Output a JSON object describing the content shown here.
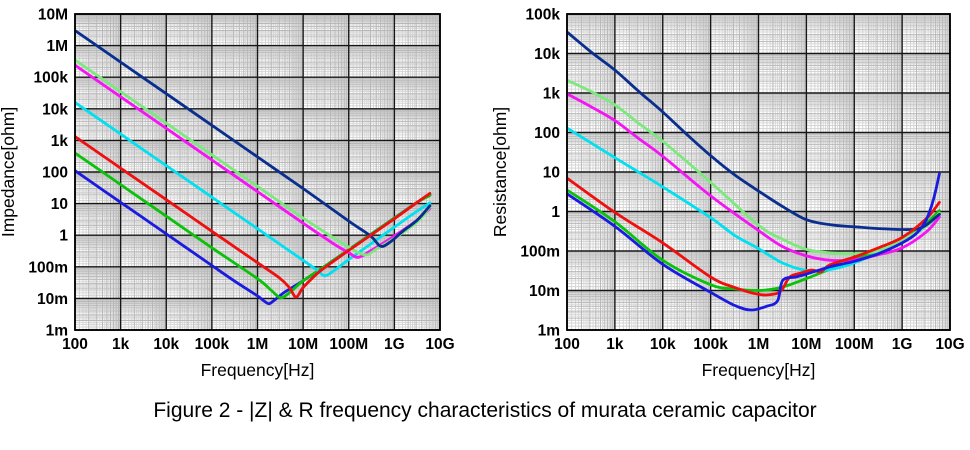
{
  "caption": "Figure 2 - |Z| & R frequency characteristics of murata ceramic capacitor",
  "colors": {
    "navy": "#0a2e8e",
    "light_green": "#7de87d",
    "magenta": "#f414f4",
    "cyan": "#00e0f0",
    "red": "#f00f0f",
    "green": "#0bc20b",
    "blue": "#1a1ae0",
    "grid_major": "#161616",
    "grid_minor": "#b8b8b8",
    "grid_fine": "#d6d6d6",
    "frame": "#000000"
  },
  "chart_data": [
    {
      "type": "line",
      "title": "",
      "xlabel": "Frequency[Hz]",
      "ylabel": "Impedance[ohm]",
      "xscale": "log",
      "yscale": "log",
      "xlim": [
        100,
        10000000000
      ],
      "ylim": [
        0.001,
        10000000
      ],
      "grid": true,
      "legend": "none",
      "x_tick_labels": [
        "100",
        "1k",
        "10k",
        "100k",
        "1M",
        "10M",
        "100M",
        "1G",
        "10G"
      ],
      "y_tick_labels": [
        "10M",
        "1M",
        "100k",
        "10k",
        "1k",
        "100",
        "10",
        "1",
        "100m",
        "10m",
        "1m"
      ],
      "series": [
        {
          "name": "blue",
          "color_key": "blue",
          "points": [
            [
              100,
              110
            ],
            [
              1000,
              11
            ],
            [
              10000,
              1.1
            ],
            [
              100000,
              0.11
            ],
            [
              316000,
              0.035
            ],
            [
              1000000,
              0.012
            ],
            [
              1400000,
              0.0082
            ],
            [
              1800000,
              0.0068
            ],
            [
              2400000,
              0.009
            ],
            [
              4000000,
              0.016
            ],
            [
              10000000,
              0.036
            ],
            [
              31600000,
              0.11
            ],
            [
              100000000,
              0.35
            ],
            [
              1000000000,
              3.5
            ],
            [
              3160000000,
              11
            ],
            [
              6000000000,
              19
            ]
          ]
        },
        {
          "name": "green",
          "color_key": "green",
          "points": [
            [
              100,
              400
            ],
            [
              1000,
              40
            ],
            [
              10000,
              4
            ],
            [
              100000,
              0.4
            ],
            [
              1000000,
              0.042
            ],
            [
              2000000,
              0.018
            ],
            [
              3200000,
              0.0105
            ],
            [
              5000000,
              0.015
            ],
            [
              10000000,
              0.036
            ],
            [
              31600000,
              0.11
            ],
            [
              100000000,
              0.35
            ],
            [
              1000000000,
              3.5
            ],
            [
              3160000000,
              11
            ],
            [
              6000000000,
              18
            ]
          ]
        },
        {
          "name": "cyan",
          "color_key": "cyan",
          "points": [
            [
              100,
              15900
            ],
            [
              1000,
              1590
            ],
            [
              10000,
              159
            ],
            [
              100000,
              15.9
            ],
            [
              1000000,
              1.6
            ],
            [
              10000000,
              0.16
            ],
            [
              20000000,
              0.08
            ],
            [
              30000000,
              0.052
            ],
            [
              50000000,
              0.08
            ],
            [
              100000000,
              0.17
            ],
            [
              316000000,
              0.55
            ],
            [
              1000000000,
              1.8
            ],
            [
              3160000000,
              5.8
            ],
            [
              6000000000,
              10.5
            ]
          ]
        },
        {
          "name": "magenta",
          "color_key": "magenta",
          "points": [
            [
              100,
              240000
            ],
            [
              1000,
              24000
            ],
            [
              10000,
              2400
            ],
            [
              100000,
              240
            ],
            [
              1000000,
              24
            ],
            [
              10000000,
              2.4
            ],
            [
              50000000,
              0.5
            ],
            [
              100000000,
              0.28
            ],
            [
              160000000,
              0.2
            ],
            [
              300000000,
              0.32
            ],
            [
              1000000000,
              0.95
            ],
            [
              3160000000,
              3.0
            ],
            [
              6000000000,
              7
            ]
          ]
        },
        {
          "name": "light-green",
          "color_key": "light_green",
          "points": [
            [
              100,
              350000
            ],
            [
              1000,
              35000
            ],
            [
              10000,
              3500
            ],
            [
              100000,
              350
            ],
            [
              1000000,
              35
            ],
            [
              10000000,
              3.5
            ],
            [
              100000000,
              0.42
            ],
            [
              230000000,
              0.24
            ],
            [
              400000000,
              0.36
            ],
            [
              1000000000,
              0.8
            ],
            [
              3160000000,
              2.6
            ],
            [
              6000000000,
              7.8
            ]
          ]
        },
        {
          "name": "navy",
          "color_key": "navy",
          "points": [
            [
              100,
              3000000
            ],
            [
              1000,
              300000
            ],
            [
              10000,
              30000
            ],
            [
              100000,
              3000
            ],
            [
              1000000,
              300
            ],
            [
              10000000,
              30
            ],
            [
              100000000,
              2.8
            ],
            [
              300000000,
              0.95
            ],
            [
              500000000,
              0.45
            ],
            [
              800000000,
              0.6
            ],
            [
              1500000000,
              1.3
            ],
            [
              3160000000,
              3.0
            ],
            [
              6000000000,
              8.5
            ]
          ]
        },
        {
          "name": "red",
          "color_key": "red",
          "points": [
            [
              100,
              1330
            ],
            [
              1000,
              133
            ],
            [
              10000,
              13.3
            ],
            [
              100000,
              1.33
            ],
            [
              1000000,
              0.135
            ],
            [
              3000000,
              0.045
            ],
            [
              5000000,
              0.022
            ],
            [
              7000000,
              0.011
            ],
            [
              10000000,
              0.022
            ],
            [
              20000000,
              0.06
            ],
            [
              31600000,
              0.1
            ],
            [
              100000000,
              0.33
            ],
            [
              1000000000,
              3.3
            ],
            [
              3160000000,
              11
            ],
            [
              6000000000,
              21
            ]
          ]
        }
      ]
    },
    {
      "type": "line",
      "title": "",
      "xlabel": "Frequency[Hz]",
      "ylabel": "Resistance[ohm]",
      "xscale": "log",
      "yscale": "log",
      "xlim": [
        100,
        10000000000
      ],
      "ylim": [
        0.001,
        100000
      ],
      "grid": true,
      "legend": "none",
      "x_tick_labels": [
        "100",
        "1k",
        "10k",
        "100k",
        "1M",
        "10M",
        "100M",
        "1G",
        "10G"
      ],
      "y_tick_labels": [
        "100k",
        "10k",
        "1k",
        "100",
        "10",
        "1",
        "100m",
        "10m",
        "1m"
      ],
      "series": [
        {
          "name": "green",
          "color_key": "green",
          "points": [
            [
              100,
              3.5
            ],
            [
              1000,
              0.55
            ],
            [
              10000,
              0.058
            ],
            [
              100000,
              0.014
            ],
            [
              316000,
              0.011
            ],
            [
              1000000,
              0.01
            ],
            [
              3000000,
              0.012
            ],
            [
              10000000,
              0.02
            ],
            [
              31600000,
              0.035
            ],
            [
              100000000,
              0.06
            ],
            [
              316000000,
              0.1
            ],
            [
              1000000000,
              0.18
            ],
            [
              3160000000,
              0.5
            ],
            [
              6000000000,
              1.05
            ]
          ]
        },
        {
          "name": "cyan",
          "color_key": "cyan",
          "points": [
            [
              100,
              130
            ],
            [
              1000,
              23
            ],
            [
              10000,
              4.2
            ],
            [
              100000,
              0.7
            ],
            [
              316000,
              0.25
            ],
            [
              1000000,
              0.115
            ],
            [
              3160000,
              0.05
            ],
            [
              10000000,
              0.032
            ],
            [
              31600000,
              0.034
            ],
            [
              100000000,
              0.05
            ],
            [
              316000000,
              0.09
            ],
            [
              1000000000,
              0.17
            ],
            [
              3160000000,
              0.42
            ],
            [
              6000000000,
              0.85
            ]
          ]
        },
        {
          "name": "magenta",
          "color_key": "magenta",
          "points": [
            [
              100,
              950
            ],
            [
              316,
              450
            ],
            [
              1000,
              200
            ],
            [
              3160,
              70
            ],
            [
              10000,
              25
            ],
            [
              100000,
              2.5
            ],
            [
              1000000,
              0.33
            ],
            [
              3160000,
              0.13
            ],
            [
              10000000,
              0.075
            ],
            [
              31600000,
              0.058
            ],
            [
              100000000,
              0.06
            ],
            [
              316000000,
              0.08
            ],
            [
              1000000000,
              0.12
            ],
            [
              3160000000,
              0.3
            ],
            [
              6000000000,
              0.72
            ]
          ]
        },
        {
          "name": "light-green",
          "color_key": "light_green",
          "points": [
            [
              100,
              2100
            ],
            [
              316,
              1100
            ],
            [
              1000,
              500
            ],
            [
              3160,
              170
            ],
            [
              10000,
              60
            ],
            [
              100000,
              5.5
            ],
            [
              1000000,
              0.45
            ],
            [
              3160000,
              0.2
            ],
            [
              10000000,
              0.11
            ],
            [
              31600000,
              0.09
            ],
            [
              100000000,
              0.085
            ],
            [
              316000000,
              0.1
            ],
            [
              1000000000,
              0.19
            ],
            [
              3160000000,
              0.42
            ],
            [
              6000000000,
              0.9
            ]
          ]
        },
        {
          "name": "navy",
          "color_key": "navy",
          "points": [
            [
              100,
              35000
            ],
            [
              316,
              11000
            ],
            [
              1000,
              3800
            ],
            [
              3160,
              1100
            ],
            [
              10000,
              330
            ],
            [
              31600,
              90
            ],
            [
              100000,
              26
            ],
            [
              316000,
              8.5
            ],
            [
              1000000,
              3.3
            ],
            [
              3160000,
              1.35
            ],
            [
              10000000,
              0.62
            ],
            [
              31600000,
              0.46
            ],
            [
              100000000,
              0.41
            ],
            [
              316000000,
              0.37
            ],
            [
              1000000000,
              0.35
            ],
            [
              2000000000,
              0.36
            ],
            [
              3160000000,
              0.45
            ],
            [
              6000000000,
              0.85
            ]
          ]
        },
        {
          "name": "red",
          "color_key": "red",
          "points": [
            [
              100,
              7
            ],
            [
              1000,
              0.95
            ],
            [
              10000,
              0.16
            ],
            [
              100000,
              0.022
            ],
            [
              316000,
              0.012
            ],
            [
              1000000,
              0.008
            ],
            [
              2000000,
              0.008
            ],
            [
              3000000,
              0.01
            ],
            [
              4500000,
              0.022
            ],
            [
              8000000,
              0.028
            ],
            [
              13000000,
              0.033
            ],
            [
              20000000,
              0.03
            ],
            [
              31600000,
              0.045
            ],
            [
              100000000,
              0.07
            ],
            [
              316000000,
              0.12
            ],
            [
              1000000000,
              0.22
            ],
            [
              3160000000,
              0.65
            ],
            [
              6000000000,
              1.7
            ]
          ]
        },
        {
          "name": "blue",
          "color_key": "blue",
          "points": [
            [
              100,
              2.8
            ],
            [
              1000,
              0.42
            ],
            [
              10000,
              0.046
            ],
            [
              100000,
              0.009
            ],
            [
              316000,
              0.0042
            ],
            [
              700000,
              0.0032
            ],
            [
              1500000,
              0.004
            ],
            [
              2500000,
              0.0055
            ],
            [
              3200000,
              0.018
            ],
            [
              6000000,
              0.022
            ],
            [
              10000000,
              0.026
            ],
            [
              31600000,
              0.04
            ],
            [
              100000000,
              0.055
            ],
            [
              316000000,
              0.085
            ],
            [
              1000000000,
              0.16
            ],
            [
              2000000000,
              0.28
            ],
            [
              3160000000,
              0.6
            ],
            [
              4500000000,
              2
            ],
            [
              6000000000,
              9
            ]
          ]
        }
      ]
    }
  ]
}
